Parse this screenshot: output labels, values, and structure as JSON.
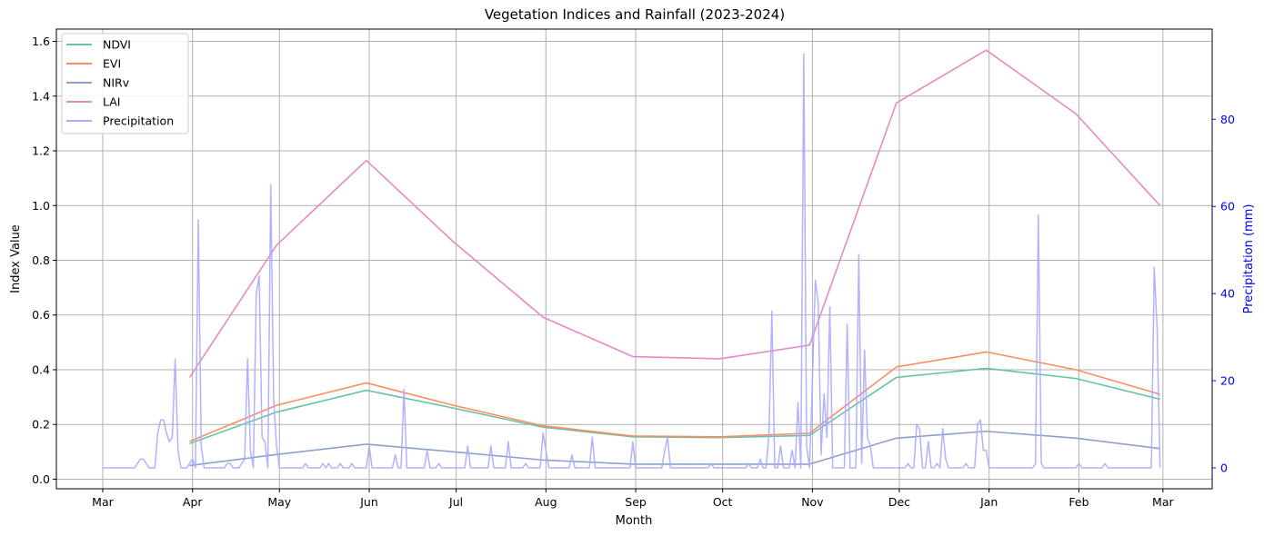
{
  "chart_data": {
    "type": "line",
    "title": "Vegetation Indices and Rainfall (2023-2024)",
    "xlabel": "Month",
    "ylabel": "Index Value",
    "y2label": "Precipitation (mm)",
    "x_tick_labels": [
      "Mar",
      "Apr",
      "May",
      "Jun",
      "Jul",
      "Aug",
      "Sep",
      "Oct",
      "Nov",
      "Dec",
      "Jan",
      "Feb",
      "Mar"
    ],
    "x_tick_dates": [
      "2023-03-01",
      "2023-04-01",
      "2023-05-01",
      "2023-06-01",
      "2023-07-01",
      "2023-08-01",
      "2023-09-01",
      "2023-10-01",
      "2023-11-01",
      "2023-12-01",
      "2024-01-01",
      "2024-02-01",
      "2024-03-01"
    ],
    "xlim": [
      "2023-02-13",
      "2024-03-18"
    ],
    "ylim": [
      -0.035,
      1.645
    ],
    "y_ticks": [
      0.0,
      0.2,
      0.4,
      0.6,
      0.8,
      1.0,
      1.2,
      1.4,
      1.6
    ],
    "y_tick_labels": [
      "0.0",
      "0.2",
      "0.4",
      "0.6",
      "0.8",
      "1.0",
      "1.2",
      "1.4",
      "1.6"
    ],
    "y2lim": [
      -4.8,
      100.7
    ],
    "y2_ticks": [
      0,
      20,
      40,
      60,
      80
    ],
    "y2_tick_labels": [
      "0",
      "20",
      "40",
      "60",
      "80"
    ],
    "grid": true,
    "legend_position": "top-left",
    "colors": {
      "ndvi": "#66c2a5",
      "evi": "#fc8d62",
      "nirv": "#8da0cb",
      "lai": "#e78ac3",
      "precip": "#aaaaff",
      "right_axis": "#0000ff",
      "grid": "#b0b0b0"
    },
    "index_dates": [
      "2023-03-31",
      "2023-04-30",
      "2023-05-31",
      "2023-06-30",
      "2023-07-31",
      "2023-08-31",
      "2023-09-30",
      "2023-10-31",
      "2023-11-30",
      "2023-12-31",
      "2024-01-31",
      "2024-02-29"
    ],
    "series": [
      {
        "name": "NDVI",
        "color": "#66c2a5",
        "values": [
          0.13,
          0.245,
          0.325,
          0.26,
          0.19,
          0.155,
          0.152,
          0.16,
          0.372,
          0.405,
          0.368,
          0.292
        ]
      },
      {
        "name": "EVI",
        "color": "#fc8d62",
        "values": [
          0.138,
          0.27,
          0.352,
          0.27,
          0.195,
          0.158,
          0.155,
          0.168,
          0.41,
          0.465,
          0.4,
          0.31
        ]
      },
      {
        "name": "NIRv",
        "color": "#8da0cb",
        "values": [
          0.05,
          0.09,
          0.128,
          0.1,
          0.07,
          0.055,
          0.055,
          0.055,
          0.15,
          0.175,
          0.15,
          0.112
        ]
      },
      {
        "name": "LAI",
        "color": "#e78ac3",
        "values": [
          0.372,
          0.855,
          1.165,
          0.868,
          0.592,
          0.448,
          0.44,
          0.49,
          1.375,
          1.568,
          1.335,
          1.0
        ]
      }
    ],
    "precipitation": {
      "name": "Precipitation",
      "color": "#aaaaff",
      "start_date": "2023-03-01",
      "end_date": "2024-02-29",
      "nonzero": [
        {
          "date": "2023-03-13",
          "value": 1
        },
        {
          "date": "2023-03-14",
          "value": 2
        },
        {
          "date": "2023-03-15",
          "value": 2
        },
        {
          "date": "2023-03-16",
          "value": 1
        },
        {
          "date": "2023-03-20",
          "value": 8
        },
        {
          "date": "2023-03-21",
          "value": 11
        },
        {
          "date": "2023-03-22",
          "value": 11
        },
        {
          "date": "2023-03-23",
          "value": 8
        },
        {
          "date": "2023-03-24",
          "value": 6
        },
        {
          "date": "2023-03-25",
          "value": 7
        },
        {
          "date": "2023-03-26",
          "value": 25
        },
        {
          "date": "2023-03-27",
          "value": 4
        },
        {
          "date": "2023-03-31",
          "value": 1
        },
        {
          "date": "2023-04-01",
          "value": 2
        },
        {
          "date": "2023-04-03",
          "value": 57
        },
        {
          "date": "2023-04-04",
          "value": 5
        },
        {
          "date": "2023-04-13",
          "value": 1
        },
        {
          "date": "2023-04-14",
          "value": 1
        },
        {
          "date": "2023-04-18",
          "value": 1
        },
        {
          "date": "2023-04-19",
          "value": 2
        },
        {
          "date": "2023-04-20",
          "value": 25
        },
        {
          "date": "2023-04-21",
          "value": 4
        },
        {
          "date": "2023-04-23",
          "value": 40
        },
        {
          "date": "2023-04-24",
          "value": 44
        },
        {
          "date": "2023-04-25",
          "value": 7
        },
        {
          "date": "2023-04-26",
          "value": 6
        },
        {
          "date": "2023-04-28",
          "value": 65
        },
        {
          "date": "2023-04-29",
          "value": 16
        },
        {
          "date": "2023-04-30",
          "value": 5
        },
        {
          "date": "2023-05-10",
          "value": 1
        },
        {
          "date": "2023-05-16",
          "value": 1
        },
        {
          "date": "2023-05-18",
          "value": 1
        },
        {
          "date": "2023-05-22",
          "value": 1
        },
        {
          "date": "2023-05-26",
          "value": 1
        },
        {
          "date": "2023-06-01",
          "value": 5
        },
        {
          "date": "2023-06-10",
          "value": 3
        },
        {
          "date": "2023-06-13",
          "value": 18
        },
        {
          "date": "2023-06-21",
          "value": 4
        },
        {
          "date": "2023-06-25",
          "value": 1
        },
        {
          "date": "2023-07-05",
          "value": 5
        },
        {
          "date": "2023-07-13",
          "value": 5
        },
        {
          "date": "2023-07-19",
          "value": 6
        },
        {
          "date": "2023-07-25",
          "value": 1
        },
        {
          "date": "2023-07-31",
          "value": 8
        },
        {
          "date": "2023-08-01",
          "value": 4
        },
        {
          "date": "2023-08-10",
          "value": 3
        },
        {
          "date": "2023-08-17",
          "value": 7
        },
        {
          "date": "2023-08-31",
          "value": 6
        },
        {
          "date": "2023-09-11",
          "value": 4
        },
        {
          "date": "2023-09-12",
          "value": 7
        },
        {
          "date": "2023-09-27",
          "value": 1
        },
        {
          "date": "2023-10-10",
          "value": 1
        },
        {
          "date": "2023-10-14",
          "value": 2
        },
        {
          "date": "2023-10-17",
          "value": 8
        },
        {
          "date": "2023-10-18",
          "value": 36
        },
        {
          "date": "2023-10-21",
          "value": 5
        },
        {
          "date": "2023-10-25",
          "value": 4
        },
        {
          "date": "2023-10-27",
          "value": 15
        },
        {
          "date": "2023-10-29",
          "value": 95
        },
        {
          "date": "2023-10-30",
          "value": 5
        },
        {
          "date": "2023-11-01",
          "value": 20
        },
        {
          "date": "2023-11-02",
          "value": 43
        },
        {
          "date": "2023-11-03",
          "value": 38
        },
        {
          "date": "2023-11-04",
          "value": 3
        },
        {
          "date": "2023-11-05",
          "value": 17
        },
        {
          "date": "2023-11-06",
          "value": 7
        },
        {
          "date": "2023-11-07",
          "value": 37
        },
        {
          "date": "2023-11-13",
          "value": 33
        },
        {
          "date": "2023-11-17",
          "value": 49
        },
        {
          "date": "2023-11-18",
          "value": 1
        },
        {
          "date": "2023-11-19",
          "value": 27
        },
        {
          "date": "2023-11-20",
          "value": 7
        },
        {
          "date": "2023-11-21",
          "value": 5
        },
        {
          "date": "2023-12-04",
          "value": 1
        },
        {
          "date": "2023-12-07",
          "value": 10
        },
        {
          "date": "2023-12-08",
          "value": 9
        },
        {
          "date": "2023-12-11",
          "value": 6
        },
        {
          "date": "2023-12-14",
          "value": 1
        },
        {
          "date": "2023-12-16",
          "value": 9
        },
        {
          "date": "2023-12-17",
          "value": 2
        },
        {
          "date": "2023-12-24",
          "value": 1
        },
        {
          "date": "2023-12-28",
          "value": 10
        },
        {
          "date": "2023-12-29",
          "value": 11
        },
        {
          "date": "2023-12-30",
          "value": 4
        },
        {
          "date": "2023-12-31",
          "value": 4
        },
        {
          "date": "2024-01-17",
          "value": 1
        },
        {
          "date": "2024-01-18",
          "value": 58
        },
        {
          "date": "2024-01-19",
          "value": 1
        },
        {
          "date": "2024-02-01",
          "value": 1
        },
        {
          "date": "2024-02-10",
          "value": 1
        },
        {
          "date": "2024-02-27",
          "value": 46
        },
        {
          "date": "2024-02-28",
          "value": 32
        }
      ]
    }
  }
}
